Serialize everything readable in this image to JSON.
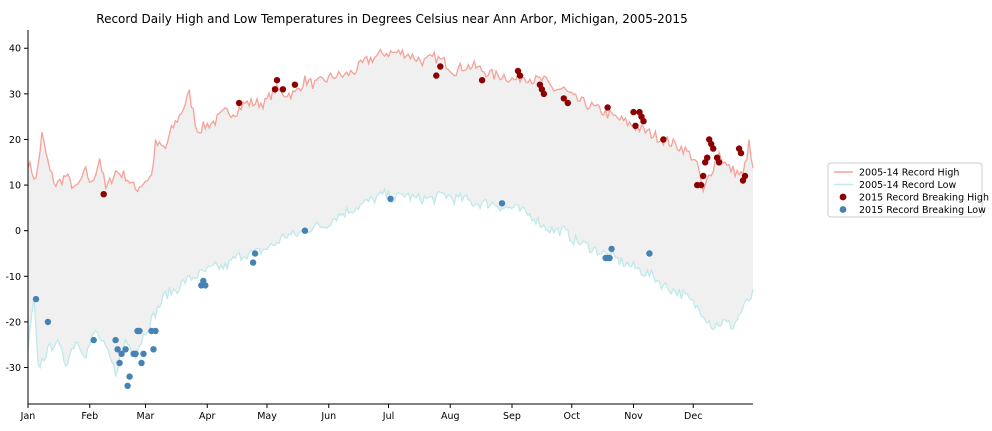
{
  "chart_data": {
    "type": "line",
    "title": "Record Daily High and Low Temperatures in Degrees Celsius near Ann Arbor, Michigan, 2005-2015",
    "xlabel": "",
    "ylabel": "",
    "xlim": [
      1,
      365
    ],
    "ylim": [
      -38,
      44
    ],
    "y_ticks": [
      -30,
      -20,
      -10,
      0,
      10,
      20,
      30,
      40
    ],
    "x_ticks": [
      {
        "day": 1,
        "label": "Jan"
      },
      {
        "day": 32,
        "label": "Feb"
      },
      {
        "day": 60,
        "label": "Mar"
      },
      {
        "day": 91,
        "label": "Apr"
      },
      {
        "day": 121,
        "label": "May"
      },
      {
        "day": 152,
        "label": "Jun"
      },
      {
        "day": 182,
        "label": "Jul"
      },
      {
        "day": 213,
        "label": "Aug"
      },
      {
        "day": 244,
        "label": "Sep"
      },
      {
        "day": 274,
        "label": "Oct"
      },
      {
        "day": 305,
        "label": "Nov"
      },
      {
        "day": 335,
        "label": "Dec"
      }
    ],
    "fill_between": {
      "color": "#f0f0f0"
    },
    "legend": {
      "placement": "right-outside"
    },
    "series": [
      {
        "name": "2005-14 Record High",
        "kind": "line",
        "color": "#f4a29a",
        "anchors": [
          [
            1,
            15
          ],
          [
            5,
            11
          ],
          [
            8,
            21
          ],
          [
            12,
            13
          ],
          [
            15,
            10
          ],
          [
            20,
            12
          ],
          [
            25,
            9
          ],
          [
            30,
            13
          ],
          [
            33,
            10
          ],
          [
            37,
            16
          ],
          [
            40,
            9
          ],
          [
            45,
            13
          ],
          [
            50,
            12
          ],
          [
            55,
            9
          ],
          [
            60,
            11
          ],
          [
            63,
            12
          ],
          [
            65,
            19
          ],
          [
            70,
            18
          ],
          [
            73,
            22
          ],
          [
            78,
            26
          ],
          [
            82,
            30
          ],
          [
            86,
            22
          ],
          [
            90,
            23
          ],
          [
            95,
            24
          ],
          [
            100,
            26
          ],
          [
            105,
            26
          ],
          [
            110,
            28
          ],
          [
            115,
            28
          ],
          [
            120,
            28
          ],
          [
            125,
            31
          ],
          [
            130,
            30
          ],
          [
            135,
            30
          ],
          [
            140,
            33
          ],
          [
            145,
            32
          ],
          [
            150,
            33
          ],
          [
            155,
            34
          ],
          [
            160,
            34
          ],
          [
            165,
            35
          ],
          [
            170,
            37
          ],
          [
            175,
            38
          ],
          [
            180,
            39
          ],
          [
            185,
            39
          ],
          [
            190,
            39
          ],
          [
            195,
            38
          ],
          [
            200,
            37
          ],
          [
            205,
            38
          ],
          [
            210,
            37
          ],
          [
            215,
            35
          ],
          [
            220,
            36
          ],
          [
            225,
            36
          ],
          [
            230,
            35
          ],
          [
            235,
            34
          ],
          [
            240,
            34
          ],
          [
            245,
            33
          ],
          [
            250,
            34
          ],
          [
            255,
            33
          ],
          [
            260,
            33
          ],
          [
            265,
            31
          ],
          [
            270,
            31
          ],
          [
            275,
            29
          ],
          [
            280,
            28
          ],
          [
            285,
            27
          ],
          [
            290,
            26
          ],
          [
            295,
            25
          ],
          [
            300,
            24
          ],
          [
            305,
            23
          ],
          [
            310,
            22
          ],
          [
            315,
            21
          ],
          [
            320,
            20
          ],
          [
            325,
            19
          ],
          [
            330,
            18
          ],
          [
            335,
            16
          ],
          [
            338,
            13
          ],
          [
            340,
            8
          ],
          [
            342,
            11
          ],
          [
            345,
            14
          ],
          [
            348,
            17
          ],
          [
            352,
            14
          ],
          [
            356,
            13
          ],
          [
            360,
            12
          ],
          [
            363,
            19
          ],
          [
            365,
            13
          ]
        ],
        "noise": 1.2
      },
      {
        "name": "2005-14 Record Low",
        "kind": "line",
        "color": "#bfe9ec",
        "anchors": [
          [
            1,
            -26
          ],
          [
            4,
            -15
          ],
          [
            6,
            -30
          ],
          [
            10,
            -27
          ],
          [
            15,
            -24
          ],
          [
            20,
            -29
          ],
          [
            25,
            -24
          ],
          [
            30,
            -27
          ],
          [
            35,
            -22
          ],
          [
            40,
            -26
          ],
          [
            45,
            -31
          ],
          [
            50,
            -24
          ],
          [
            55,
            -27
          ],
          [
            60,
            -22
          ],
          [
            65,
            -18
          ],
          [
            70,
            -14
          ],
          [
            75,
            -13
          ],
          [
            80,
            -11
          ],
          [
            85,
            -10
          ],
          [
            90,
            -9
          ],
          [
            95,
            -8
          ],
          [
            100,
            -8
          ],
          [
            105,
            -6
          ],
          [
            110,
            -5
          ],
          [
            115,
            -5
          ],
          [
            120,
            -4
          ],
          [
            125,
            -3
          ],
          [
            130,
            -1
          ],
          [
            135,
            -1
          ],
          [
            140,
            0
          ],
          [
            145,
            1
          ],
          [
            150,
            1
          ],
          [
            155,
            3
          ],
          [
            160,
            4
          ],
          [
            165,
            5
          ],
          [
            170,
            6
          ],
          [
            175,
            7
          ],
          [
            180,
            8
          ],
          [
            185,
            7
          ],
          [
            190,
            8
          ],
          [
            195,
            7
          ],
          [
            200,
            7
          ],
          [
            205,
            7
          ],
          [
            210,
            8
          ],
          [
            215,
            7
          ],
          [
            220,
            7
          ],
          [
            225,
            6
          ],
          [
            230,
            6
          ],
          [
            235,
            6
          ],
          [
            240,
            5
          ],
          [
            245,
            5
          ],
          [
            250,
            4
          ],
          [
            255,
            3
          ],
          [
            260,
            1
          ],
          [
            265,
            0
          ],
          [
            270,
            0
          ],
          [
            275,
            -2
          ],
          [
            280,
            -3
          ],
          [
            285,
            -4
          ],
          [
            290,
            -5
          ],
          [
            295,
            -6
          ],
          [
            300,
            -7
          ],
          [
            305,
            -8
          ],
          [
            310,
            -9
          ],
          [
            315,
            -10
          ],
          [
            320,
            -12
          ],
          [
            325,
            -13
          ],
          [
            330,
            -14
          ],
          [
            335,
            -16
          ],
          [
            340,
            -18
          ],
          [
            345,
            -21
          ],
          [
            350,
            -20
          ],
          [
            355,
            -21
          ],
          [
            360,
            -17
          ],
          [
            365,
            -14
          ]
        ],
        "noise": 1.2
      },
      {
        "name": "2015 Record Breaking High",
        "kind": "scatter",
        "color": "#8b0000",
        "points": [
          [
            39,
            8
          ],
          [
            107,
            28
          ],
          [
            125,
            31
          ],
          [
            126,
            33
          ],
          [
            129,
            31
          ],
          [
            135,
            32
          ],
          [
            206,
            34
          ],
          [
            208,
            36
          ],
          [
            229,
            33
          ],
          [
            247,
            35
          ],
          [
            248,
            34
          ],
          [
            258,
            32
          ],
          [
            259,
            31
          ],
          [
            260,
            30
          ],
          [
            270,
            29
          ],
          [
            272,
            28
          ],
          [
            292,
            27
          ],
          [
            305,
            26
          ],
          [
            306,
            23
          ],
          [
            308,
            26
          ],
          [
            309,
            25
          ],
          [
            310,
            24
          ],
          [
            320,
            20
          ],
          [
            337,
            10
          ],
          [
            339,
            10
          ],
          [
            340,
            12
          ],
          [
            341,
            15
          ],
          [
            342,
            16
          ],
          [
            343,
            20
          ],
          [
            344,
            19
          ],
          [
            345,
            18
          ],
          [
            347,
            16
          ],
          [
            348,
            15
          ],
          [
            358,
            18
          ],
          [
            359,
            17
          ],
          [
            360,
            11
          ],
          [
            361,
            12
          ]
        ]
      },
      {
        "name": "2015 Record Breaking Low",
        "kind": "scatter",
        "color": "#4682b4",
        "points": [
          [
            5,
            -15
          ],
          [
            11,
            -20
          ],
          [
            34,
            -24
          ],
          [
            45,
            -24
          ],
          [
            46,
            -26
          ],
          [
            47,
            -29
          ],
          [
            48,
            -27
          ],
          [
            50,
            -26
          ],
          [
            51,
            -34
          ],
          [
            52,
            -32
          ],
          [
            54,
            -27
          ],
          [
            55,
            -27
          ],
          [
            56,
            -22
          ],
          [
            57,
            -22
          ],
          [
            58,
            -29
          ],
          [
            59,
            -27
          ],
          [
            63,
            -22
          ],
          [
            64,
            -26
          ],
          [
            65,
            -22
          ],
          [
            88,
            -12
          ],
          [
            89,
            -11
          ],
          [
            90,
            -12
          ],
          [
            114,
            -7
          ],
          [
            115,
            -5
          ],
          [
            140,
            0
          ],
          [
            183,
            7
          ],
          [
            239,
            6
          ],
          [
            291,
            -6
          ],
          [
            292,
            -6
          ],
          [
            293,
            -6
          ],
          [
            294,
            -4
          ],
          [
            313,
            -5
          ]
        ]
      }
    ]
  }
}
